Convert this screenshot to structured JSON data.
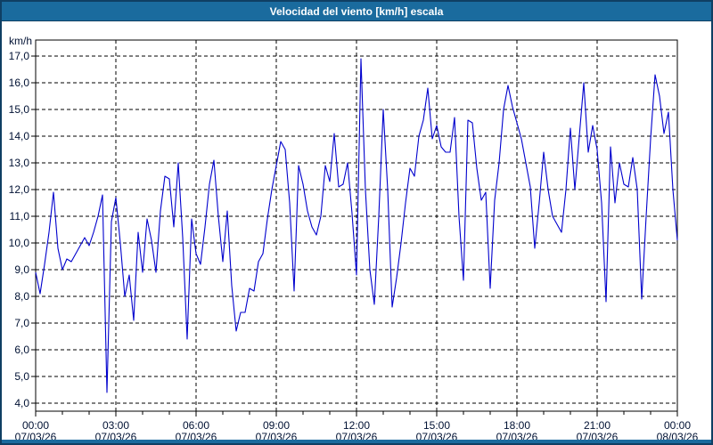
{
  "window": {
    "title": "Velocidad del viento [km/h] escala"
  },
  "colors": {
    "titlebar_bg": "#1a6b9e",
    "window_border": "#0f3f63",
    "line": "#0000cd",
    "grid": "#000000",
    "label_text": "#001133",
    "plot_bg": "#ffffff"
  },
  "chart_data": {
    "type": "line",
    "title": "Velocidad del viento [km/h] escala",
    "series_name": "Velocidad del viento",
    "ylabel": "km/h",
    "grid": "dashed",
    "legend": "none",
    "y_axis": {
      "min": 4.0,
      "max": 17.0,
      "step": 1.0,
      "tick_labels": [
        "17,0",
        "16,0",
        "15,0",
        "14,0",
        "13,0",
        "12,0",
        "11,0",
        "10,0",
        "9,0",
        "8,0",
        "7,0",
        "6,0",
        "5,0",
        "4,0"
      ]
    },
    "x_axis": {
      "range_hours": [
        0,
        24
      ],
      "major_tick_hours": [
        0,
        3,
        6,
        9,
        12,
        15,
        18,
        21,
        24
      ],
      "minor_tick_interval_hours": 1,
      "tick_labels": [
        {
          "time": "00:00",
          "date": "07/03/26"
        },
        {
          "time": "03:00",
          "date": "07/03/26"
        },
        {
          "time": "06:00",
          "date": "07/03/26"
        },
        {
          "time": "09:00",
          "date": "07/03/26"
        },
        {
          "time": "12:00",
          "date": "07/03/26"
        },
        {
          "time": "15:00",
          "date": "07/03/26"
        },
        {
          "time": "18:00",
          "date": "07/03/26"
        },
        {
          "time": "21:00",
          "date": "07/03/26"
        },
        {
          "time": "00:00",
          "date": "08/03/26"
        }
      ]
    },
    "sample_interval_minutes": 10,
    "times": [
      "00:00",
      "00:10",
      "00:20",
      "00:30",
      "00:40",
      "00:50",
      "01:00",
      "01:10",
      "01:20",
      "01:30",
      "01:40",
      "01:50",
      "02:00",
      "02:10",
      "02:20",
      "02:30",
      "02:40",
      "02:50",
      "03:00",
      "03:10",
      "03:20",
      "03:30",
      "03:40",
      "03:50",
      "04:00",
      "04:10",
      "04:20",
      "04:30",
      "04:40",
      "04:50",
      "05:00",
      "05:10",
      "05:20",
      "05:30",
      "05:40",
      "05:50",
      "06:00",
      "06:10",
      "06:20",
      "06:30",
      "06:40",
      "06:50",
      "07:00",
      "07:10",
      "07:20",
      "07:30",
      "07:40",
      "07:50",
      "08:00",
      "08:10",
      "08:20",
      "08:30",
      "08:40",
      "08:50",
      "09:00",
      "09:10",
      "09:20",
      "09:30",
      "09:40",
      "09:50",
      "10:00",
      "10:10",
      "10:20",
      "10:30",
      "10:40",
      "10:50",
      "11:00",
      "11:10",
      "11:20",
      "11:30",
      "11:40",
      "11:50",
      "12:00",
      "12:10",
      "12:20",
      "12:30",
      "12:40",
      "12:50",
      "13:00",
      "13:10",
      "13:20",
      "13:30",
      "13:40",
      "13:50",
      "14:00",
      "14:10",
      "14:20",
      "14:30",
      "14:40",
      "14:50",
      "15:00",
      "15:10",
      "15:20",
      "15:30",
      "15:40",
      "15:50",
      "16:00",
      "16:10",
      "16:20",
      "16:30",
      "16:40",
      "16:50",
      "17:00",
      "17:10",
      "17:20",
      "17:30",
      "17:40",
      "17:50",
      "18:00",
      "18:10",
      "18:20",
      "18:30",
      "18:40",
      "18:50",
      "19:00",
      "19:10",
      "19:20",
      "19:30",
      "19:40",
      "19:50",
      "20:00",
      "20:10",
      "20:20",
      "20:30",
      "20:40",
      "20:50",
      "21:00",
      "21:10",
      "21:20",
      "21:30",
      "21:40",
      "21:50",
      "22:00",
      "22:10",
      "22:20",
      "22:30",
      "22:40",
      "22:50",
      "23:00",
      "23:10",
      "23:20",
      "23:30",
      "23:40",
      "23:50",
      "24:00"
    ],
    "values_kmh": [
      8.9,
      8.1,
      9.2,
      10.4,
      11.9,
      9.8,
      9.0,
      9.4,
      9.3,
      9.6,
      9.9,
      10.2,
      9.9,
      10.4,
      11.0,
      11.8,
      4.4,
      10.8,
      11.7,
      10.0,
      8.0,
      8.8,
      7.1,
      10.4,
      8.9,
      10.9,
      10.1,
      8.9,
      11.2,
      12.5,
      12.4,
      10.6,
      13.0,
      10.2,
      6.4,
      10.9,
      9.6,
      9.2,
      10.6,
      12.2,
      13.1,
      11.0,
      9.3,
      11.2,
      8.4,
      6.7,
      7.4,
      7.4,
      8.3,
      8.2,
      9.3,
      9.6,
      10.9,
      12.0,
      12.9,
      13.8,
      13.5,
      11.5,
      8.2,
      12.9,
      12.2,
      11.2,
      10.6,
      10.3,
      11.0,
      12.9,
      12.3,
      14.1,
      12.1,
      12.2,
      13.0,
      11.1,
      8.8,
      16.9,
      12.0,
      9.0,
      7.7,
      11.0,
      15.0,
      12.0,
      7.6,
      8.7,
      10.0,
      11.5,
      12.8,
      12.5,
      14.0,
      14.6,
      15.8,
      13.9,
      14.4,
      13.6,
      13.4,
      13.4,
      14.7,
      11.0,
      8.6,
      14.6,
      14.5,
      12.8,
      11.6,
      11.9,
      8.3,
      11.6,
      13.0,
      15.0,
      15.9,
      15.1,
      14.5,
      13.9,
      13.0,
      12.1,
      9.8,
      11.5,
      13.4,
      12.0,
      11.0,
      10.7,
      10.4,
      12.0,
      14.3,
      12.0,
      14.0,
      16.0,
      13.4,
      14.4,
      13.5,
      11.5,
      7.8,
      13.6,
      11.5,
      13.0,
      12.2,
      12.1,
      13.2,
      12.0,
      7.9,
      11.0,
      13.9,
      16.3,
      15.5,
      14.1,
      14.9,
      12.0,
      10.1
    ]
  }
}
